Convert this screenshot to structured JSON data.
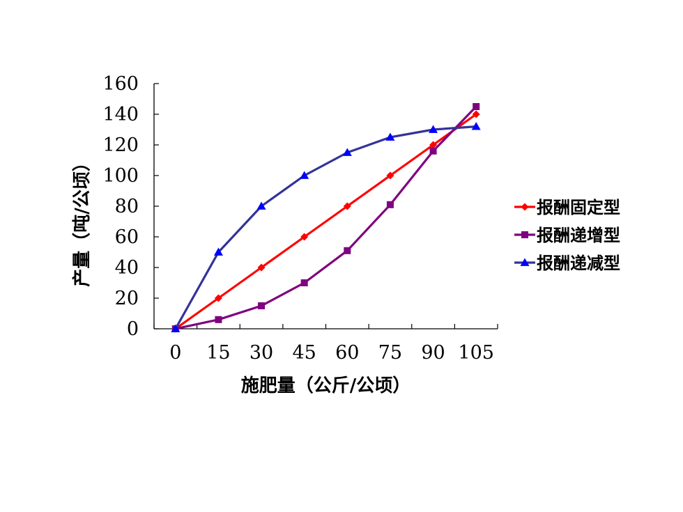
{
  "chart_data": {
    "type": "line",
    "title": "",
    "xlabel": "施肥量（公斤/公顷）",
    "ylabel": "产量（吨/公顷）",
    "categories": [
      "0",
      "15",
      "30",
      "45",
      "60",
      "75",
      "90",
      "105"
    ],
    "x": [
      0,
      15,
      30,
      45,
      60,
      75,
      90,
      105
    ],
    "ylim": [
      0,
      160
    ],
    "yticks": [
      "0",
      "20",
      "40",
      "60",
      "80",
      "100",
      "120",
      "140",
      "160"
    ],
    "grid": false,
    "legend_position": "right",
    "series": [
      {
        "name": "报酬固定型",
        "color": "#ff0000",
        "marker": "diamond",
        "values": [
          0,
          20,
          40,
          60,
          80,
          100,
          120,
          140
        ]
      },
      {
        "name": "报酬递增型",
        "color": "#800080",
        "marker": "square",
        "values": [
          0,
          6,
          15,
          30,
          51,
          81,
          116,
          145
        ]
      },
      {
        "name": "报酬递减型",
        "color": "#333399",
        "marker_color": "#0000ff",
        "marker": "triangle",
        "values": [
          0,
          50,
          80,
          100,
          115,
          125,
          130,
          132
        ]
      }
    ]
  }
}
